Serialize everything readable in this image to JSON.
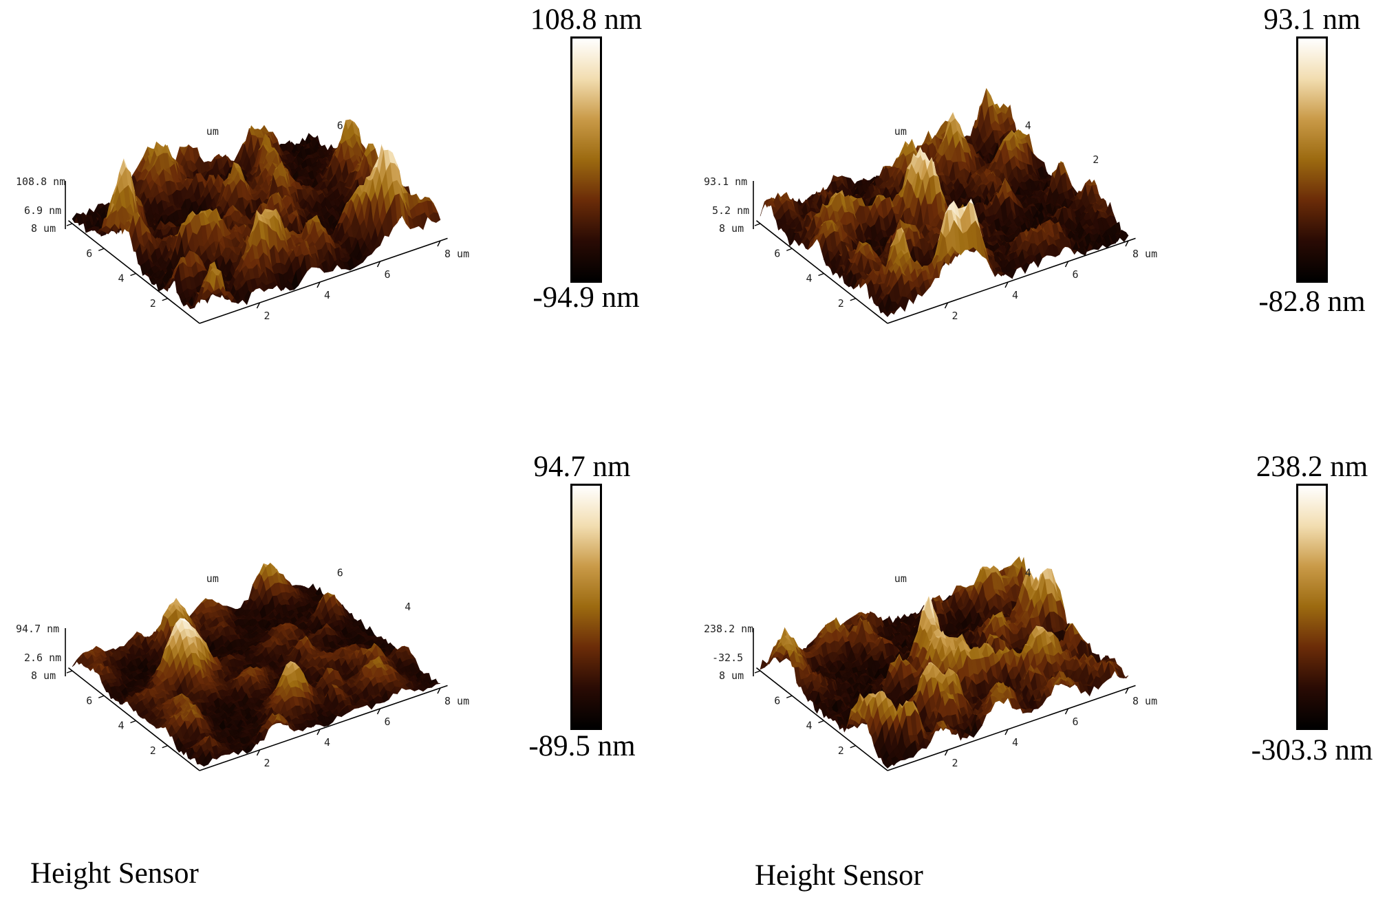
{
  "colors": {
    "colorbar_stops": [
      "#ffffff",
      "#f2ddb0",
      "#c99a48",
      "#9c6a10",
      "#6b2c08",
      "#2a0b04",
      "#000000"
    ],
    "surface_light": "#fff8e8",
    "surface_mid": "#b07818",
    "surface_dark": "#3a1204"
  },
  "panels": [
    {
      "z_max_label": "108.8 nm",
      "z_mid_label": "6.9 nm",
      "colorbar_max": "108.8 nm",
      "colorbar_min": "-94.9 nm",
      "x_ticks": [
        "2",
        "4",
        "6",
        "8 um"
      ],
      "y_ticks": [
        "2",
        "4",
        "6",
        "8 um"
      ],
      "back_ticks": [
        "um",
        "6"
      ],
      "roughness_scale": 1.0,
      "seed": 11
    },
    {
      "z_max_label": "93.1 nm",
      "z_mid_label": "5.2 nm",
      "colorbar_max": "93.1 nm",
      "colorbar_min": "-82.8 nm",
      "x_ticks": [
        "2",
        "4",
        "6",
        "8 um"
      ],
      "y_ticks": [
        "2",
        "4",
        "6",
        "8 um"
      ],
      "back_ticks": [
        "um",
        "4",
        "2"
      ],
      "roughness_scale": 0.85,
      "seed": 23
    },
    {
      "z_max_label": "94.7 nm",
      "z_mid_label": "2.6 nm",
      "colorbar_max": "94.7 nm",
      "colorbar_min": "-89.5 nm",
      "x_ticks": [
        "2",
        "4",
        "6",
        "8 um"
      ],
      "y_ticks": [
        "2",
        "4",
        "6",
        "8 um"
      ],
      "back_ticks": [
        "um",
        "6",
        "4"
      ],
      "roughness_scale": 0.55,
      "seed": 37
    },
    {
      "z_max_label": "238.2 nm",
      "z_mid_label": "-32.5",
      "colorbar_max": "238.2 nm",
      "colorbar_min": "-303.3 nm",
      "x_ticks": [
        "2",
        "4",
        "6",
        "8 um"
      ],
      "y_ticks": [
        "2",
        "4",
        "6",
        "8 um"
      ],
      "back_ticks": [
        "um",
        "4"
      ],
      "roughness_scale": 0.7,
      "seed": 51
    }
  ],
  "captions": [
    "Height Sensor",
    "Height Sensor"
  ]
}
